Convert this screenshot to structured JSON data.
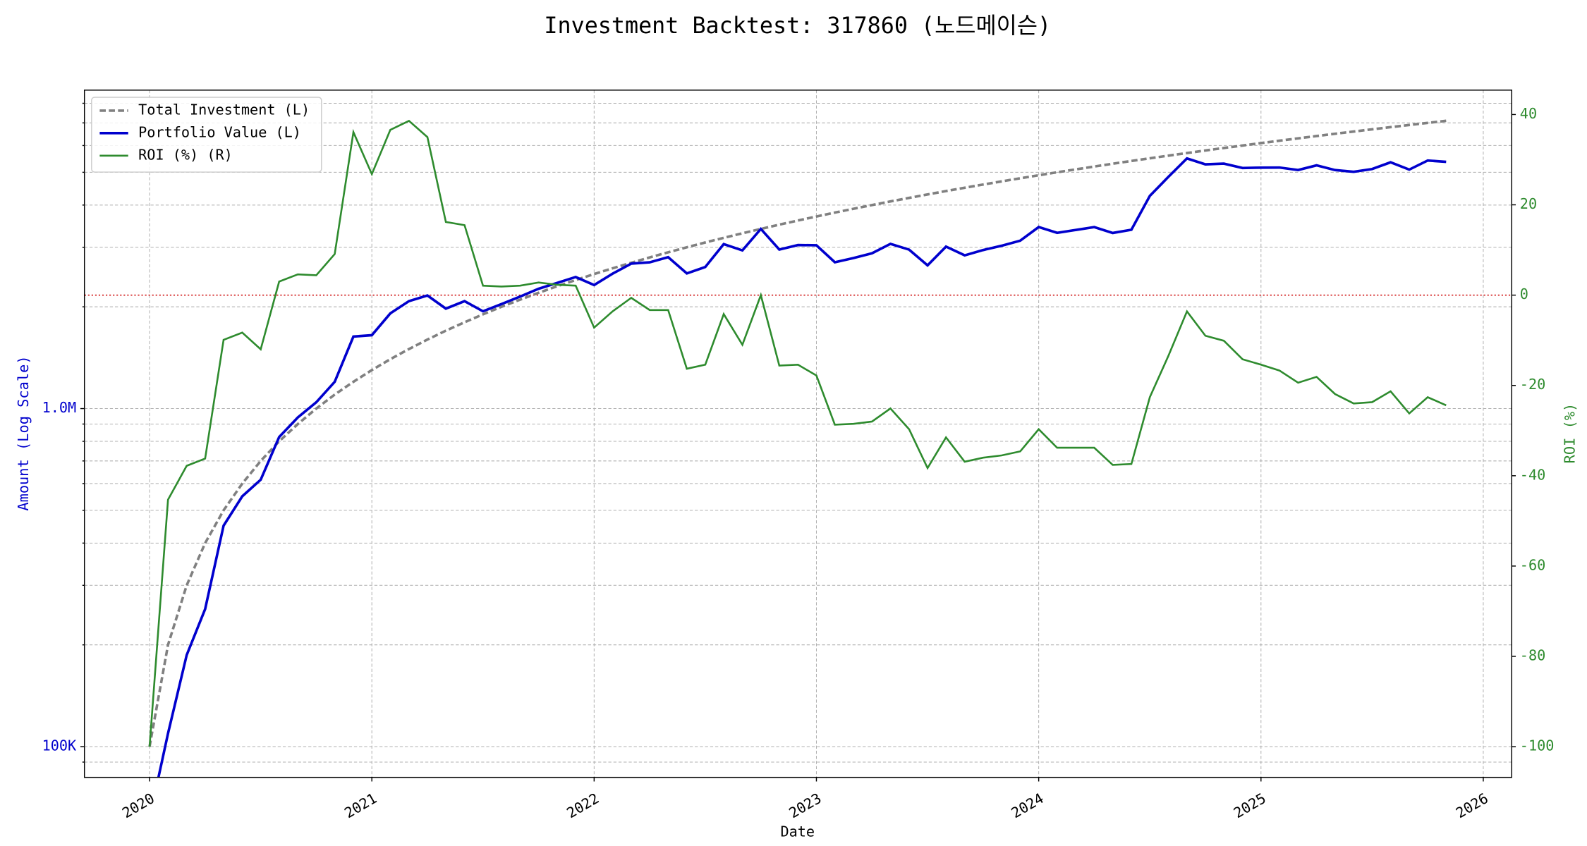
{
  "chart_data": {
    "type": "line",
    "title": "Investment Backtest: 317860 (노드메이슨)",
    "xlabel": "Date",
    "ylabel": "Amount (Log Scale)",
    "y2label": "ROI (%)",
    "yscale": "log",
    "grid": true,
    "legend": "upper left",
    "xlim": [
      2019.707,
      2026.128
    ],
    "xticks": [
      2020,
      2021,
      2022,
      2023,
      2024,
      2025,
      2026
    ],
    "ylim": [
      81100,
      8750000
    ],
    "yticks": [
      {
        "value": 100000,
        "label": "100K"
      },
      {
        "value": 1000000,
        "label": "1.0M"
      }
    ],
    "yminorticks": [
      90000,
      200000,
      300000,
      400000,
      500000,
      600000,
      700000,
      800000,
      900000,
      2000000,
      3000000,
      4000000,
      5000000,
      6000000,
      7000000,
      8000000
    ],
    "y2lim": [
      -106.8,
      45.4
    ],
    "y2ticks": [
      -100,
      -80,
      -60,
      -40,
      -20,
      0,
      20,
      40
    ],
    "reference_line": {
      "value": 0,
      "axis": "y2",
      "color": "#cc0000"
    },
    "x": [
      2020,
      2020.083,
      2020.167,
      2020.25,
      2020.333,
      2020.417,
      2020.5,
      2020.583,
      2020.667,
      2020.75,
      2020.833,
      2020.917,
      2021,
      2021.083,
      2021.167,
      2021.25,
      2021.333,
      2021.417,
      2021.5,
      2021.583,
      2021.667,
      2021.75,
      2021.833,
      2021.917,
      2022,
      2022.083,
      2022.167,
      2022.25,
      2022.333,
      2022.417,
      2022.5,
      2022.583,
      2022.667,
      2022.75,
      2022.833,
      2022.917,
      2023,
      2023.083,
      2023.167,
      2023.25,
      2023.333,
      2023.417,
      2023.5,
      2023.583,
      2023.667,
      2023.75,
      2023.833,
      2023.917,
      2024,
      2024.083,
      2024.167,
      2024.25,
      2024.333,
      2024.417,
      2024.5,
      2024.583,
      2024.667,
      2024.75,
      2024.833,
      2024.917,
      2025,
      2025.083,
      2025.167,
      2025.25,
      2025.333,
      2025.417,
      2025.5,
      2025.583,
      2025.667,
      2025.75,
      2025.833
    ],
    "series": [
      {
        "name": "Total Investment (L)",
        "color": "#808080",
        "style": "dashed",
        "axis": "y",
        "values": [
          100000,
          200000,
          300000,
          400000,
          500000,
          600000,
          700000,
          800000,
          900000,
          1000000,
          1100000,
          1200000,
          1300000,
          1400000,
          1500000,
          1600000,
          1700000,
          1800000,
          1900000,
          2000000,
          2100000,
          2200000,
          2300000,
          2400000,
          2500000,
          2600000,
          2700000,
          2800000,
          2900000,
          3000000,
          3100000,
          3200000,
          3300000,
          3400000,
          3500000,
          3600000,
          3700000,
          3800000,
          3900000,
          4000000,
          4100000,
          4200000,
          4300000,
          4400000,
          4500000,
          4600000,
          4700000,
          4800000,
          4900000,
          5000000,
          5100000,
          5200000,
          5300000,
          5400000,
          5500000,
          5600000,
          5700000,
          5800000,
          5900000,
          6000000,
          6100000,
          6200000,
          6300000,
          6400000,
          6500000,
          6600000,
          6700000,
          6800000,
          6900000,
          7000000,
          7100000
        ]
      },
      {
        "name": "Portfolio Value (L)",
        "color": "#0000cd",
        "style": "solid",
        "axis": "y",
        "values": [
          0,
          109400,
          186600,
          255200,
          450500,
          550200,
          616000,
          824000,
          941400,
          1044000,
          1200100,
          1633200,
          1648400,
          1912400,
          2079000,
          2160000,
          1975400,
          2079000,
          1939900,
          2038000,
          2144100,
          2261600,
          2352900,
          2450400,
          2320000,
          2506400,
          2683800,
          2707600,
          2804300,
          2511000,
          2622600,
          3065600,
          2937000,
          3400000,
          2954000,
          3045600,
          3041400,
          2709400,
          2788500,
          2880000,
          3070900,
          2952600,
          2653100,
          3014000,
          2839500,
          2944000,
          3031500,
          3139200,
          3444700,
          3310000,
          3376200,
          3442400,
          3307200,
          3380400,
          4257000,
          4844000,
          5494800,
          5278000,
          5304100,
          5148000,
          5160600,
          5164600,
          5077800,
          5241600,
          5076500,
          5016000,
          5112100,
          5351600,
          5092200,
          5418000,
          5367600
        ]
      },
      {
        "name": "ROI (%) (R)",
        "color": "#2e8b2e",
        "style": "solid",
        "axis": "y2",
        "values": [
          -100,
          -45.3,
          -37.8,
          -36.2,
          -9.9,
          -8.3,
          -12,
          3,
          4.6,
          4.4,
          9.1,
          36.1,
          26.8,
          36.6,
          38.6,
          35,
          16.2,
          15.5,
          2.1,
          1.9,
          2.1,
          2.8,
          2.3,
          2.1,
          -7.2,
          -3.6,
          -0.6,
          -3.3,
          -3.3,
          -16.3,
          -15.4,
          -4.2,
          -11,
          0,
          -15.6,
          -15.4,
          -17.8,
          -28.7,
          -28.5,
          -28,
          -25.1,
          -29.7,
          -38.3,
          -31.5,
          -36.9,
          -36,
          -35.5,
          -34.6,
          -29.7,
          -33.8,
          -33.8,
          -33.8,
          -37.6,
          -37.4,
          -22.6,
          -13.5,
          -3.6,
          -9,
          -10.1,
          -14.2,
          -15.4,
          -16.7,
          -19.4,
          -18.1,
          -21.9,
          -24,
          -23.7,
          -21.3,
          -26.2,
          -22.6,
          -24.4
        ]
      }
    ]
  }
}
